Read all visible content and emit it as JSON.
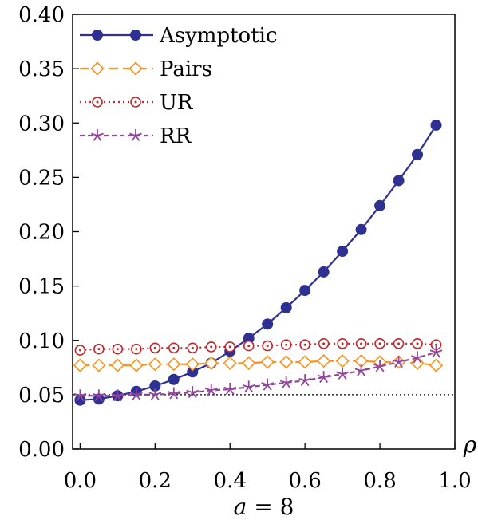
{
  "chart_data": {
    "type": "line",
    "xlabel": "ρ",
    "caption": {
      "var": "a",
      "eq": " = 8"
    },
    "xlim": [
      -0.02,
      1.0
    ],
    "ylim": [
      0.0,
      0.4
    ],
    "x_ticks": [
      "0.0",
      "0.2",
      "0.4",
      "0.6",
      "0.8",
      "1.0"
    ],
    "x_tick_values": [
      0.0,
      0.2,
      0.4,
      0.6,
      0.8,
      1.0
    ],
    "y_ticks": [
      "0.00",
      "0.05",
      "0.10",
      "0.15",
      "0.20",
      "0.25",
      "0.30",
      "0.35",
      "0.40"
    ],
    "y_tick_values": [
      0.0,
      0.05,
      0.1,
      0.15,
      0.2,
      0.25,
      0.3,
      0.35,
      0.4
    ],
    "reference_line": 0.05,
    "grid": false,
    "legend_position": "top-left",
    "x": [
      0.0,
      0.05,
      0.1,
      0.15,
      0.2,
      0.25,
      0.3,
      0.35,
      0.4,
      0.45,
      0.5,
      0.55,
      0.6,
      0.65,
      0.7,
      0.75,
      0.8,
      0.85,
      0.9,
      0.95
    ],
    "series": [
      {
        "name": "Asymptotic",
        "color": "#2e3192",
        "marker": "filled-circle",
        "line": "solid",
        "values": [
          0.045,
          0.046,
          0.049,
          0.053,
          0.058,
          0.064,
          0.071,
          0.079,
          0.09,
          0.102,
          0.115,
          0.13,
          0.146,
          0.163,
          0.182,
          0.202,
          0.224,
          0.247,
          0.271,
          0.298
        ]
      },
      {
        "name": "Pairs",
        "color": "#f7941d",
        "marker": "open-diamond",
        "line": "dashed",
        "values": [
          0.077,
          0.077,
          0.077,
          0.077,
          0.078,
          0.078,
          0.078,
          0.079,
          0.079,
          0.079,
          0.08,
          0.08,
          0.08,
          0.081,
          0.081,
          0.081,
          0.08,
          0.08,
          0.079,
          0.077
        ]
      },
      {
        "name": "UR",
        "color": "#c1272d",
        "marker": "open-circle-dot",
        "line": "dotted",
        "values": [
          0.091,
          0.092,
          0.092,
          0.092,
          0.093,
          0.093,
          0.093,
          0.094,
          0.094,
          0.095,
          0.095,
          0.096,
          0.096,
          0.097,
          0.097,
          0.097,
          0.097,
          0.097,
          0.097,
          0.096
        ]
      },
      {
        "name": "RR",
        "color": "#92449c",
        "marker": "star",
        "line": "short-dashed",
        "values": [
          0.049,
          0.049,
          0.049,
          0.05,
          0.05,
          0.051,
          0.052,
          0.054,
          0.055,
          0.057,
          0.059,
          0.061,
          0.063,
          0.066,
          0.069,
          0.072,
          0.076,
          0.08,
          0.084,
          0.089
        ]
      }
    ]
  }
}
